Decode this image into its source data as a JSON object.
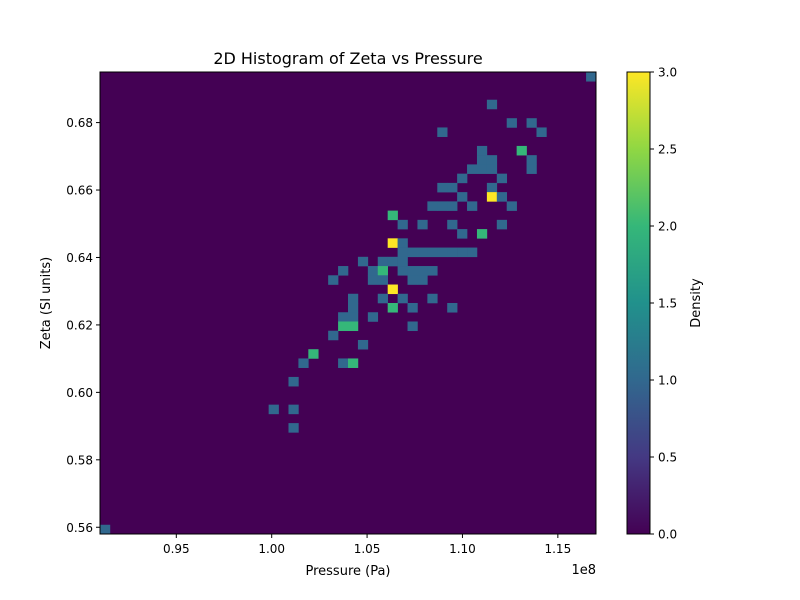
{
  "chart_data": {
    "type": "heatmap",
    "title": "2D Histogram of Zeta vs Pressure",
    "xlabel": "Pressure (Pa)",
    "ylabel": "Zeta (SI units)",
    "x_offset_label": "1e8",
    "colorbar_label": "Density",
    "xlim": [
      0.91,
      1.17
    ],
    "ylim": [
      0.558,
      0.695
    ],
    "x_ticks": [
      0.95,
      1.0,
      1.05,
      1.1,
      1.15
    ],
    "x_tick_labels": [
      "0.95",
      "1.00",
      "1.05",
      "1.10",
      "1.15"
    ],
    "y_ticks": [
      0.56,
      0.58,
      0.6,
      0.62,
      0.64,
      0.66,
      0.68
    ],
    "y_tick_labels": [
      "0.56",
      "0.58",
      "0.60",
      "0.62",
      "0.64",
      "0.66",
      "0.68"
    ],
    "colorbar_ticks": [
      0.0,
      0.5,
      1.0,
      1.5,
      2.0,
      2.5,
      3.0
    ],
    "colorbar_tick_labels": [
      "0.0",
      "0.5",
      "1.0",
      "1.5",
      "2.0",
      "2.5",
      "3.0"
    ],
    "value_range": [
      0,
      3
    ],
    "colormap": "viridis",
    "grid": false,
    "bins": {
      "nx": 50,
      "ny": 50
    },
    "cells": [
      [
        0,
        0,
        1
      ],
      [
        49,
        49,
        1
      ],
      [
        39,
        46,
        1
      ],
      [
        41,
        44,
        1
      ],
      [
        43,
        44,
        1
      ],
      [
        34,
        43,
        1
      ],
      [
        44,
        43,
        1
      ],
      [
        38,
        41,
        1
      ],
      [
        42,
        41,
        2
      ],
      [
        38,
        40,
        1
      ],
      [
        39,
        40,
        1
      ],
      [
        43,
        40,
        1
      ],
      [
        37,
        39,
        1
      ],
      [
        38,
        39,
        1
      ],
      [
        39,
        39,
        1
      ],
      [
        43,
        39,
        1
      ],
      [
        36,
        38,
        1
      ],
      [
        40,
        38,
        1
      ],
      [
        34,
        37,
        1
      ],
      [
        35,
        37,
        1
      ],
      [
        39,
        37,
        1
      ],
      [
        36,
        36,
        1
      ],
      [
        39,
        36,
        3
      ],
      [
        40,
        36,
        1
      ],
      [
        33,
        35,
        1
      ],
      [
        34,
        35,
        1
      ],
      [
        35,
        35,
        1
      ],
      [
        37,
        35,
        1
      ],
      [
        41,
        35,
        1
      ],
      [
        29,
        34,
        2
      ],
      [
        30,
        33,
        1
      ],
      [
        32,
        33,
        1
      ],
      [
        35,
        33,
        1
      ],
      [
        40,
        33,
        1
      ],
      [
        36,
        32,
        1
      ],
      [
        38,
        32,
        2
      ],
      [
        29,
        31,
        3
      ],
      [
        30,
        31,
        1
      ],
      [
        30,
        30,
        1
      ],
      [
        31,
        30,
        1
      ],
      [
        32,
        30,
        1
      ],
      [
        33,
        30,
        1
      ],
      [
        34,
        30,
        1
      ],
      [
        35,
        30,
        1
      ],
      [
        36,
        30,
        1
      ],
      [
        37,
        30,
        1
      ],
      [
        26,
        29,
        1
      ],
      [
        28,
        29,
        1
      ],
      [
        29,
        29,
        1
      ],
      [
        30,
        29,
        1
      ],
      [
        24,
        28,
        1
      ],
      [
        27,
        28,
        1
      ],
      [
        28,
        28,
        2
      ],
      [
        30,
        28,
        1
      ],
      [
        31,
        28,
        1
      ],
      [
        32,
        28,
        1
      ],
      [
        33,
        28,
        1
      ],
      [
        23,
        27,
        1
      ],
      [
        27,
        27,
        1
      ],
      [
        28,
        27,
        1
      ],
      [
        31,
        27,
        1
      ],
      [
        32,
        27,
        1
      ],
      [
        29,
        26,
        3
      ],
      [
        25,
        25,
        1
      ],
      [
        28,
        25,
        1
      ],
      [
        30,
        25,
        1
      ],
      [
        33,
        25,
        1
      ],
      [
        25,
        24,
        1
      ],
      [
        29,
        24,
        2
      ],
      [
        31,
        24,
        1
      ],
      [
        35,
        24,
        1
      ],
      [
        24,
        23,
        1
      ],
      [
        25,
        23,
        1
      ],
      [
        27,
        23,
        1
      ],
      [
        24,
        22,
        2
      ],
      [
        25,
        22,
        2
      ],
      [
        31,
        22,
        1
      ],
      [
        23,
        21,
        1
      ],
      [
        26,
        20,
        1
      ],
      [
        21,
        19,
        2
      ],
      [
        20,
        18,
        1
      ],
      [
        24,
        18,
        1
      ],
      [
        25,
        18,
        2
      ],
      [
        19,
        16,
        1
      ],
      [
        17,
        13,
        1
      ],
      [
        19,
        13,
        1
      ],
      [
        19,
        11,
        1
      ]
    ]
  }
}
